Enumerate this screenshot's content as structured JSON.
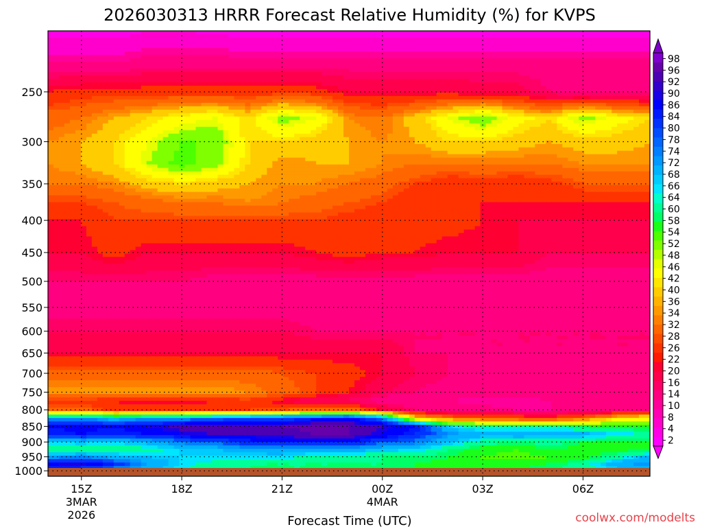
{
  "chart_data": {
    "type": "heatmap",
    "title": "2026030313 HRRR Forecast Relative Humidity (%) for KVPS",
    "xlabel": "Forecast Time (UTC)",
    "ylabel": "",
    "credit": "coolwx.com/modelts",
    "x_ticks": [
      {
        "label": "15Z",
        "sub1": "3MAR",
        "sub2": "2026",
        "hour": 1
      },
      {
        "label": "18Z",
        "sub1": "",
        "sub2": "",
        "hour": 4
      },
      {
        "label": "21Z",
        "sub1": "",
        "sub2": "",
        "hour": 7
      },
      {
        "label": "00Z",
        "sub1": "4MAR",
        "sub2": "",
        "hour": 10
      },
      {
        "label": "03Z",
        "sub1": "",
        "sub2": "",
        "hour": 13
      },
      {
        "label": "06Z",
        "sub1": "",
        "sub2": "",
        "hour": 16
      }
    ],
    "y_ticks": [
      250,
      300,
      350,
      400,
      450,
      500,
      550,
      600,
      650,
      700,
      750,
      800,
      850,
      900,
      950,
      1000
    ],
    "y_scale": "log",
    "y_inverted": true,
    "ylim": [
      1020,
      200
    ],
    "xlim": [
      0,
      18
    ],
    "colorbar": {
      "levels": [
        2,
        4,
        8,
        10,
        14,
        16,
        20,
        22,
        26,
        28,
        32,
        34,
        36,
        40,
        42,
        46,
        48,
        52,
        54,
        58,
        60,
        64,
        66,
        68,
        72,
        74,
        78,
        80,
        84,
        86,
        90,
        92,
        96,
        98
      ],
      "colors": [
        "#ff00ff",
        "#ff00e6",
        "#ff00cc",
        "#ff00b3",
        "#ff0099",
        "#ff0080",
        "#ff0066",
        "#ff004d",
        "#ff0033",
        "#ff1a00",
        "#ff3300",
        "#ff4d00",
        "#ff6600",
        "#ff8000",
        "#ff9900",
        "#ffb300",
        "#ffcc00",
        "#ffe600",
        "#ffff00",
        "#e6ff00",
        "#b3ff00",
        "#80ff00",
        "#4dff00",
        "#1aff1a",
        "#00ff66",
        "#00ff99",
        "#00ffcc",
        "#00e6ff",
        "#00ccff",
        "#00b3ff",
        "#0099ff",
        "#0080ff",
        "#0066ff",
        "#004dff",
        "#0033ff",
        "#001aff",
        "#0000ff",
        "#1a00e6",
        "#3300cc",
        "#4d00b3",
        "#6600aa",
        "#8000cc"
      ],
      "extend": "both"
    },
    "ground_color": "#b5542a",
    "x": [
      0,
      1,
      2,
      3,
      4,
      5,
      6,
      7,
      8,
      9,
      10,
      11,
      12,
      13,
      14,
      15,
      16,
      17,
      18
    ],
    "pressure": [
      200,
      225,
      250,
      275,
      300,
      325,
      350,
      375,
      400,
      450,
      500,
      550,
      600,
      650,
      700,
      750,
      775,
      800,
      825,
      850,
      875,
      900,
      925,
      950,
      975,
      1000,
      1020
    ],
    "rh": [
      [
        2,
        2,
        2,
        4,
        4,
        3,
        2,
        2,
        2,
        2,
        2,
        2,
        2,
        2,
        2,
        2,
        2,
        2,
        2
      ],
      [
        10,
        10,
        10,
        12,
        12,
        12,
        12,
        12,
        12,
        12,
        12,
        12,
        12,
        12,
        12,
        12,
        12,
        12,
        12
      ],
      [
        22,
        24,
        24,
        24,
        24,
        24,
        24,
        24,
        24,
        20,
        20,
        20,
        20,
        18,
        18,
        14,
        12,
        12,
        12
      ],
      [
        30,
        32,
        36,
        40,
        44,
        46,
        40,
        50,
        46,
        34,
        32,
        38,
        46,
        52,
        44,
        40,
        50,
        44,
        40
      ],
      [
        34,
        36,
        40,
        46,
        52,
        52,
        40,
        40,
        38,
        36,
        34,
        36,
        40,
        40,
        38,
        36,
        38,
        38,
        36
      ],
      [
        34,
        36,
        40,
        48,
        54,
        50,
        40,
        34,
        36,
        36,
        34,
        32,
        32,
        32,
        32,
        32,
        34,
        34,
        34
      ],
      [
        32,
        32,
        34,
        38,
        40,
        38,
        36,
        34,
        34,
        32,
        30,
        26,
        22,
        24,
        22,
        24,
        28,
        28,
        28
      ],
      [
        26,
        26,
        28,
        30,
        32,
        32,
        34,
        32,
        30,
        28,
        26,
        22,
        22,
        22,
        22,
        22,
        22,
        22,
        22
      ],
      [
        22,
        22,
        26,
        26,
        26,
        26,
        26,
        26,
        26,
        24,
        22,
        24,
        24,
        22,
        20,
        20,
        20,
        20,
        20
      ],
      [
        20,
        20,
        24,
        20,
        20,
        20,
        20,
        20,
        22,
        24,
        22,
        22,
        20,
        20,
        20,
        16,
        16,
        16,
        16
      ],
      [
        14,
        14,
        14,
        14,
        14,
        12,
        12,
        12,
        12,
        12,
        12,
        12,
        12,
        12,
        12,
        12,
        12,
        12,
        12
      ],
      [
        12,
        12,
        12,
        12,
        12,
        12,
        12,
        12,
        12,
        12,
        12,
        12,
        12,
        12,
        12,
        12,
        12,
        12,
        12
      ],
      [
        16,
        16,
        16,
        16,
        16,
        16,
        16,
        16,
        14,
        14,
        14,
        14,
        14,
        14,
        14,
        14,
        14,
        14,
        14
      ],
      [
        20,
        20,
        20,
        20,
        20,
        20,
        20,
        20,
        20,
        20,
        20,
        14,
        14,
        14,
        14,
        14,
        14,
        14,
        14
      ],
      [
        30,
        30,
        30,
        30,
        30,
        30,
        30,
        28,
        26,
        24,
        20,
        16,
        14,
        12,
        12,
        12,
        12,
        12,
        12
      ],
      [
        36,
        36,
        36,
        36,
        36,
        36,
        34,
        30,
        26,
        22,
        16,
        14,
        12,
        12,
        12,
        12,
        12,
        12,
        12
      ],
      [
        24,
        24,
        22,
        20,
        20,
        22,
        24,
        20,
        16,
        14,
        12,
        10,
        10,
        8,
        8,
        10,
        12,
        12,
        12
      ],
      [
        30,
        30,
        24,
        24,
        24,
        26,
        26,
        28,
        30,
        32,
        20,
        14,
        14,
        12,
        10,
        10,
        10,
        14,
        14
      ],
      [
        72,
        74,
        68,
        72,
        74,
        76,
        78,
        80,
        84,
        88,
        76,
        40,
        30,
        28,
        26,
        24,
        30,
        40,
        44
      ],
      [
        86,
        88,
        86,
        90,
        94,
        96,
        96,
        96,
        98,
        96,
        92,
        86,
        66,
        60,
        60,
        62,
        58,
        56,
        56
      ],
      [
        84,
        86,
        84,
        86,
        90,
        92,
        92,
        94,
        96,
        96,
        90,
        84,
        74,
        70,
        72,
        70,
        70,
        66,
        64
      ],
      [
        66,
        68,
        66,
        70,
        76,
        80,
        84,
        86,
        88,
        86,
        80,
        76,
        68,
        62,
        60,
        62,
        58,
        56,
        58
      ],
      [
        58,
        60,
        60,
        62,
        66,
        68,
        70,
        72,
        70,
        70,
        68,
        66,
        60,
        56,
        54,
        58,
        56,
        56,
        58
      ],
      [
        72,
        74,
        70,
        68,
        66,
        66,
        66,
        66,
        62,
        62,
        60,
        60,
        58,
        54,
        52,
        54,
        56,
        62,
        70
      ],
      [
        90,
        92,
        84,
        72,
        66,
        62,
        60,
        60,
        60,
        60,
        60,
        58,
        56,
        54,
        56,
        58,
        62,
        70,
        74
      ],
      [
        80,
        78,
        72,
        68,
        64,
        62,
        60,
        60,
        60,
        60,
        60,
        58,
        58,
        58,
        58,
        60,
        62,
        66,
        70
      ],
      [
        80,
        78,
        72,
        68,
        64,
        62,
        60,
        60,
        60,
        60,
        60,
        58,
        58,
        58,
        58,
        60,
        62,
        66,
        70
      ]
    ]
  }
}
